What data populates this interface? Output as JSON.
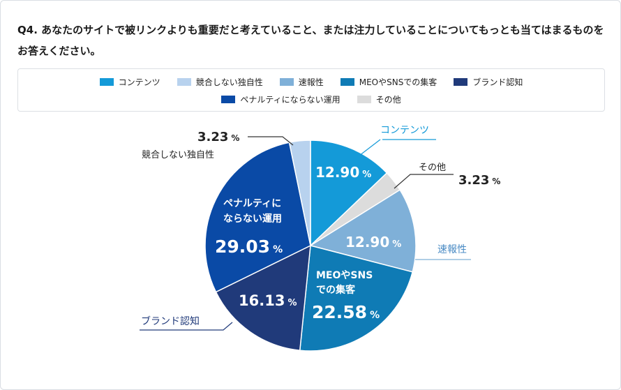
{
  "question": "Q4. あなたのサイトで被リンクよりも重要だと考えていること、または注力していることについてもっとも当てはまるものをお答えください。",
  "chart_data": {
    "type": "pie",
    "title": "",
    "unit": "%",
    "categories": [
      "コンテンツ",
      "その他",
      "速報性",
      "MEOやSNSでの集客",
      "ブランド認知",
      "ペナルティにならない運用",
      "競合しない独自性"
    ],
    "values": [
      12.9,
      3.23,
      12.9,
      22.58,
      16.13,
      29.03,
      3.23
    ],
    "value_labels": [
      "12.90",
      "3.23",
      "12.90",
      "22.58",
      "16.13",
      "29.03",
      "3.23"
    ],
    "colors": [
      "#149ad8",
      "#dcdcdc",
      "#7fb0d8",
      "#0f7bb5",
      "#203a7a",
      "#0a4aa6",
      "#b8d2ee"
    ],
    "legend": [
      {
        "label": "コンテンツ",
        "color": "#149ad8"
      },
      {
        "label": "競合しない独自性",
        "color": "#b8d2ee"
      },
      {
        "label": "速報性",
        "color": "#7fb0d8"
      },
      {
        "label": "MEOやSNSでの集客",
        "color": "#0f7bb5"
      },
      {
        "label": "ブランド認知",
        "color": "#203a7a"
      },
      {
        "label": "ペナルティにならない運用",
        "color": "#0a4aa6"
      },
      {
        "label": "その他",
        "color": "#dcdcdc"
      }
    ],
    "inside_labels": {
      "contents": "12.90",
      "speed": "12.90",
      "meo_line1": "MEOやSNS",
      "meo_line2": "での集客",
      "meo_value": "22.58",
      "brand": "16.13",
      "penalty_line1": "ペナルティに",
      "penalty_line2": "ならない運用",
      "penalty_value": "29.03"
    },
    "outside_labels": {
      "contents": "コンテンツ",
      "other": "その他",
      "other_value": "3.23",
      "speed": "速報性",
      "brand": "ブランド認知",
      "unique": "競合しない独自性",
      "unique_value": "3.23"
    },
    "percent_sign": "%"
  }
}
